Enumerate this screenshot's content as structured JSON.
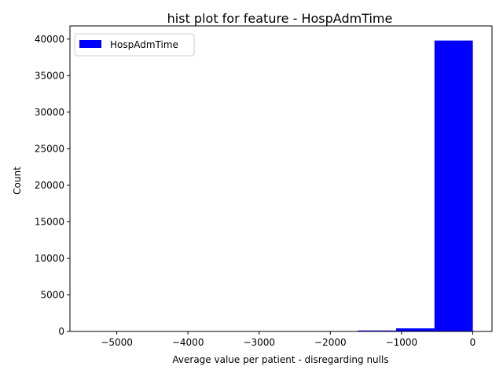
{
  "chart_data": {
    "type": "bar",
    "title": "hist plot for feature -  HospAdmTime",
    "xlabel": "Average value per patient - disregarding nulls",
    "ylabel": "Count",
    "bins": [
      {
        "x0": -5388,
        "x1": -4849,
        "count": 2
      },
      {
        "x0": -4849,
        "x1": -4310,
        "count": 1
      },
      {
        "x0": -4310,
        "x1": -3771,
        "count": 2
      },
      {
        "x0": -3771,
        "x1": -3232,
        "count": 4
      },
      {
        "x0": -3232,
        "x1": -2693,
        "count": 6
      },
      {
        "x0": -2693,
        "x1": -2154,
        "count": 10
      },
      {
        "x0": -2154,
        "x1": -1615,
        "count": 25
      },
      {
        "x0": -1615,
        "x1": -1076,
        "count": 130
      },
      {
        "x0": -1076,
        "x1": -537,
        "count": 420
      },
      {
        "x0": -537,
        "x1": 2,
        "count": 39800
      }
    ],
    "xlim": [
      -5658,
      271
    ],
    "ylim": [
      0,
      41800
    ],
    "xticks": [
      -5000,
      -4000,
      -3000,
      -2000,
      -1000,
      0
    ],
    "xtick_labels": [
      "−5000",
      "−4000",
      "−3000",
      "−2000",
      "−1000",
      "0"
    ],
    "yticks": [
      0,
      5000,
      10000,
      15000,
      20000,
      25000,
      30000,
      35000,
      40000
    ],
    "ytick_labels": [
      "0",
      "5000",
      "10000",
      "15000",
      "20000",
      "25000",
      "30000",
      "35000",
      "40000"
    ],
    "grid": false,
    "legend": {
      "placement": "upper-left",
      "entries": [
        {
          "label": "HospAdmTime",
          "color": "#0000ff"
        }
      ]
    },
    "bar_color": "#0000ff"
  }
}
